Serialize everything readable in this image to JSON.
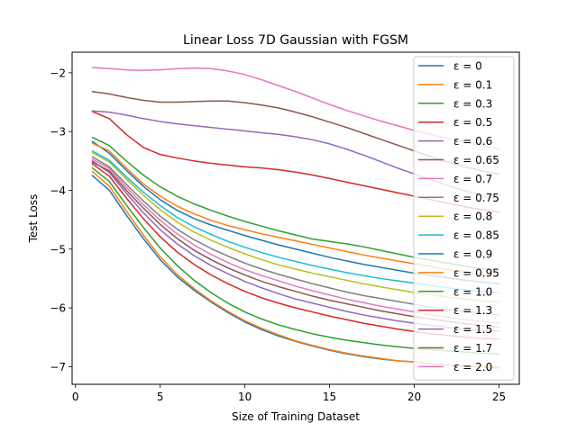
{
  "chart_data": {
    "type": "line",
    "title": "Linear Loss 7D Gaussian with FGSM",
    "xlabel": "Size of Training Dataset",
    "ylabel": "Test Loss",
    "xlim": [
      -0.2,
      26.2
    ],
    "ylim": [
      -7.3,
      -1.65
    ],
    "xticks": [
      0,
      5,
      10,
      15,
      20,
      25
    ],
    "yticks": [
      -7,
      -6,
      -5,
      -4,
      -3,
      -2
    ],
    "ytick_labels": [
      "−7",
      "−6",
      "−5",
      "−4",
      "−3",
      "−2"
    ],
    "grid": false,
    "legend_position": "right",
    "x": [
      1,
      2,
      3,
      4,
      5,
      6,
      7,
      8,
      9,
      10,
      11,
      12,
      13,
      14,
      15,
      16,
      17,
      18,
      19,
      20,
      21,
      22,
      23,
      24,
      25
    ],
    "series": [
      {
        "name": "ε = 0",
        "color": "#1f77b4",
        "values": [
          -3.75,
          -4.0,
          -4.42,
          -4.82,
          -5.18,
          -5.47,
          -5.7,
          -5.9,
          -6.08,
          -6.24,
          -6.37,
          -6.48,
          -6.57,
          -6.65,
          -6.72,
          -6.78,
          -6.83,
          -6.87,
          -6.9,
          -6.92,
          -6.95,
          -6.97,
          -6.99,
          -7.0,
          -7.02
        ]
      },
      {
        "name": "ε = 0.1",
        "color": "#ff7f0e",
        "values": [
          -3.68,
          -3.93,
          -4.35,
          -4.76,
          -5.13,
          -5.43,
          -5.67,
          -5.88,
          -6.06,
          -6.22,
          -6.35,
          -6.46,
          -6.56,
          -6.64,
          -6.71,
          -6.77,
          -6.82,
          -6.86,
          -6.9,
          -6.92,
          -6.95,
          -6.97,
          -6.98,
          -7.0,
          -7.01
        ]
      },
      {
        "name": "ε = 0.3",
        "color": "#2ca02c",
        "values": [
          -3.62,
          -3.85,
          -4.25,
          -4.63,
          -4.98,
          -5.28,
          -5.53,
          -5.74,
          -5.92,
          -6.07,
          -6.19,
          -6.29,
          -6.37,
          -6.44,
          -6.5,
          -6.55,
          -6.59,
          -6.63,
          -6.66,
          -6.69,
          -6.71,
          -6.73,
          -6.75,
          -6.77,
          -6.78
        ]
      },
      {
        "name": "ε = 0.5",
        "color": "#d62728",
        "values": [
          -3.55,
          -3.76,
          -4.13,
          -4.48,
          -4.79,
          -5.05,
          -5.26,
          -5.44,
          -5.59,
          -5.72,
          -5.83,
          -5.92,
          -6.0,
          -6.07,
          -6.14,
          -6.2,
          -6.26,
          -6.31,
          -6.36,
          -6.4,
          -6.44,
          -6.47,
          -6.5,
          -6.52,
          -6.53
        ]
      },
      {
        "name": "ε = 0.6",
        "color": "#9467bd",
        "values": [
          -3.5,
          -3.7,
          -4.05,
          -4.38,
          -4.67,
          -4.91,
          -5.11,
          -5.28,
          -5.42,
          -5.55,
          -5.66,
          -5.76,
          -5.85,
          -5.92,
          -5.99,
          -6.06,
          -6.12,
          -6.17,
          -6.22,
          -6.26,
          -6.3,
          -6.33,
          -6.36,
          -6.38,
          -6.4
        ]
      },
      {
        "name": "ε = 0.65",
        "color": "#8c564b",
        "values": [
          -3.52,
          -3.67,
          -4.0,
          -4.3,
          -4.58,
          -4.82,
          -5.02,
          -5.18,
          -5.32,
          -5.44,
          -5.55,
          -5.64,
          -5.72,
          -5.8,
          -5.87,
          -5.93,
          -5.99,
          -6.05,
          -6.1,
          -6.15,
          -6.19,
          -6.23,
          -6.27,
          -6.3,
          -6.33
        ]
      },
      {
        "name": "ε = 0.7",
        "color": "#e377c2",
        "values": [
          -3.47,
          -3.63,
          -3.95,
          -4.24,
          -4.51,
          -4.74,
          -4.93,
          -5.09,
          -5.23,
          -5.35,
          -5.45,
          -5.54,
          -5.63,
          -5.71,
          -5.78,
          -5.85,
          -5.91,
          -5.97,
          -6.02,
          -6.07,
          -6.12,
          -6.16,
          -6.2,
          -6.23,
          -6.26
        ]
      },
      {
        "name": "ε = 0.75",
        "color": "#7f7f7f",
        "values": [
          -3.43,
          -3.6,
          -3.9,
          -4.18,
          -4.44,
          -4.66,
          -4.84,
          -4.99,
          -5.12,
          -5.24,
          -5.34,
          -5.43,
          -5.51,
          -5.59,
          -5.66,
          -5.73,
          -5.79,
          -5.84,
          -5.89,
          -5.94,
          -5.99,
          -6.03,
          -6.06,
          -6.09,
          -6.12
        ]
      },
      {
        "name": "ε = 0.8",
        "color": "#bcbd22",
        "values": [
          -3.36,
          -3.52,
          -3.81,
          -4.08,
          -4.33,
          -4.54,
          -4.71,
          -4.85,
          -4.97,
          -5.08,
          -5.18,
          -5.27,
          -5.34,
          -5.41,
          -5.47,
          -5.53,
          -5.59,
          -5.64,
          -5.69,
          -5.74,
          -5.78,
          -5.82,
          -5.85,
          -5.88,
          -5.9
        ]
      },
      {
        "name": "ε = 0.85",
        "color": "#17becf",
        "values": [
          -3.33,
          -3.49,
          -3.77,
          -4.03,
          -4.26,
          -4.46,
          -4.62,
          -4.75,
          -4.87,
          -4.97,
          -5.06,
          -5.14,
          -5.21,
          -5.28,
          -5.34,
          -5.4,
          -5.45,
          -5.5,
          -5.54,
          -5.58,
          -5.62,
          -5.66,
          -5.69,
          -5.72,
          -5.74
        ]
      },
      {
        "name": "ε = 0.9",
        "color": "#1f77b4",
        "values": [
          -3.17,
          -3.37,
          -3.66,
          -3.93,
          -4.16,
          -4.34,
          -4.48,
          -4.59,
          -4.68,
          -4.77,
          -4.85,
          -4.93,
          -5.0,
          -5.07,
          -5.14,
          -5.2,
          -5.26,
          -5.31,
          -5.36,
          -5.41,
          -5.45,
          -5.49,
          -5.53,
          -5.56,
          -5.59
        ]
      },
      {
        "name": "ε = 0.95",
        "color": "#ff7f0e",
        "values": [
          -3.2,
          -3.33,
          -3.62,
          -3.89,
          -4.1,
          -4.27,
          -4.4,
          -4.51,
          -4.6,
          -4.67,
          -4.74,
          -4.8,
          -4.86,
          -4.92,
          -4.98,
          -5.04,
          -5.1,
          -5.15,
          -5.2,
          -5.25,
          -5.3,
          -5.35,
          -5.39,
          -5.43,
          -5.47
        ]
      },
      {
        "name": "ε = 1.0",
        "color": "#2ca02c",
        "values": [
          -3.1,
          -3.24,
          -3.5,
          -3.74,
          -3.94,
          -4.1,
          -4.23,
          -4.34,
          -4.44,
          -4.53,
          -4.61,
          -4.69,
          -4.76,
          -4.83,
          -4.87,
          -4.91,
          -4.96,
          -5.02,
          -5.08,
          -5.14,
          -5.19,
          -5.24,
          -5.29,
          -5.33,
          -5.36
        ]
      },
      {
        "name": "ε = 1.3",
        "color": "#d62728",
        "values": [
          -2.66,
          -2.78,
          -3.05,
          -3.27,
          -3.39,
          -3.45,
          -3.5,
          -3.54,
          -3.57,
          -3.6,
          -3.62,
          -3.65,
          -3.69,
          -3.74,
          -3.8,
          -3.86,
          -3.92,
          -3.98,
          -4.04,
          -4.1,
          -4.16,
          -4.22,
          -4.28,
          -4.33,
          -4.37
        ]
      },
      {
        "name": "ε = 1.5",
        "color": "#9467bd",
        "values": [
          -2.65,
          -2.67,
          -2.72,
          -2.78,
          -2.83,
          -2.87,
          -2.9,
          -2.93,
          -2.96,
          -2.99,
          -3.02,
          -3.05,
          -3.09,
          -3.14,
          -3.21,
          -3.3,
          -3.4,
          -3.51,
          -3.62,
          -3.72,
          -3.82,
          -3.92,
          -4.01,
          -4.09,
          -4.15
        ]
      },
      {
        "name": "ε = 1.7",
        "color": "#8c564b",
        "values": [
          -2.32,
          -2.36,
          -2.42,
          -2.47,
          -2.5,
          -2.5,
          -2.49,
          -2.48,
          -2.48,
          -2.51,
          -2.55,
          -2.6,
          -2.67,
          -2.75,
          -2.84,
          -2.93,
          -3.03,
          -3.13,
          -3.23,
          -3.33,
          -3.43,
          -3.52,
          -3.6,
          -3.67,
          -3.73
        ]
      },
      {
        "name": "ε = 2.0",
        "color": "#e377c2",
        "values": [
          -1.91,
          -1.93,
          -1.95,
          -1.96,
          -1.95,
          -1.93,
          -1.92,
          -1.93,
          -1.97,
          -2.03,
          -2.12,
          -2.22,
          -2.32,
          -2.43,
          -2.54,
          -2.64,
          -2.73,
          -2.82,
          -2.9,
          -2.98,
          -3.05,
          -3.12,
          -3.18,
          -3.24,
          -3.3
        ]
      }
    ]
  }
}
